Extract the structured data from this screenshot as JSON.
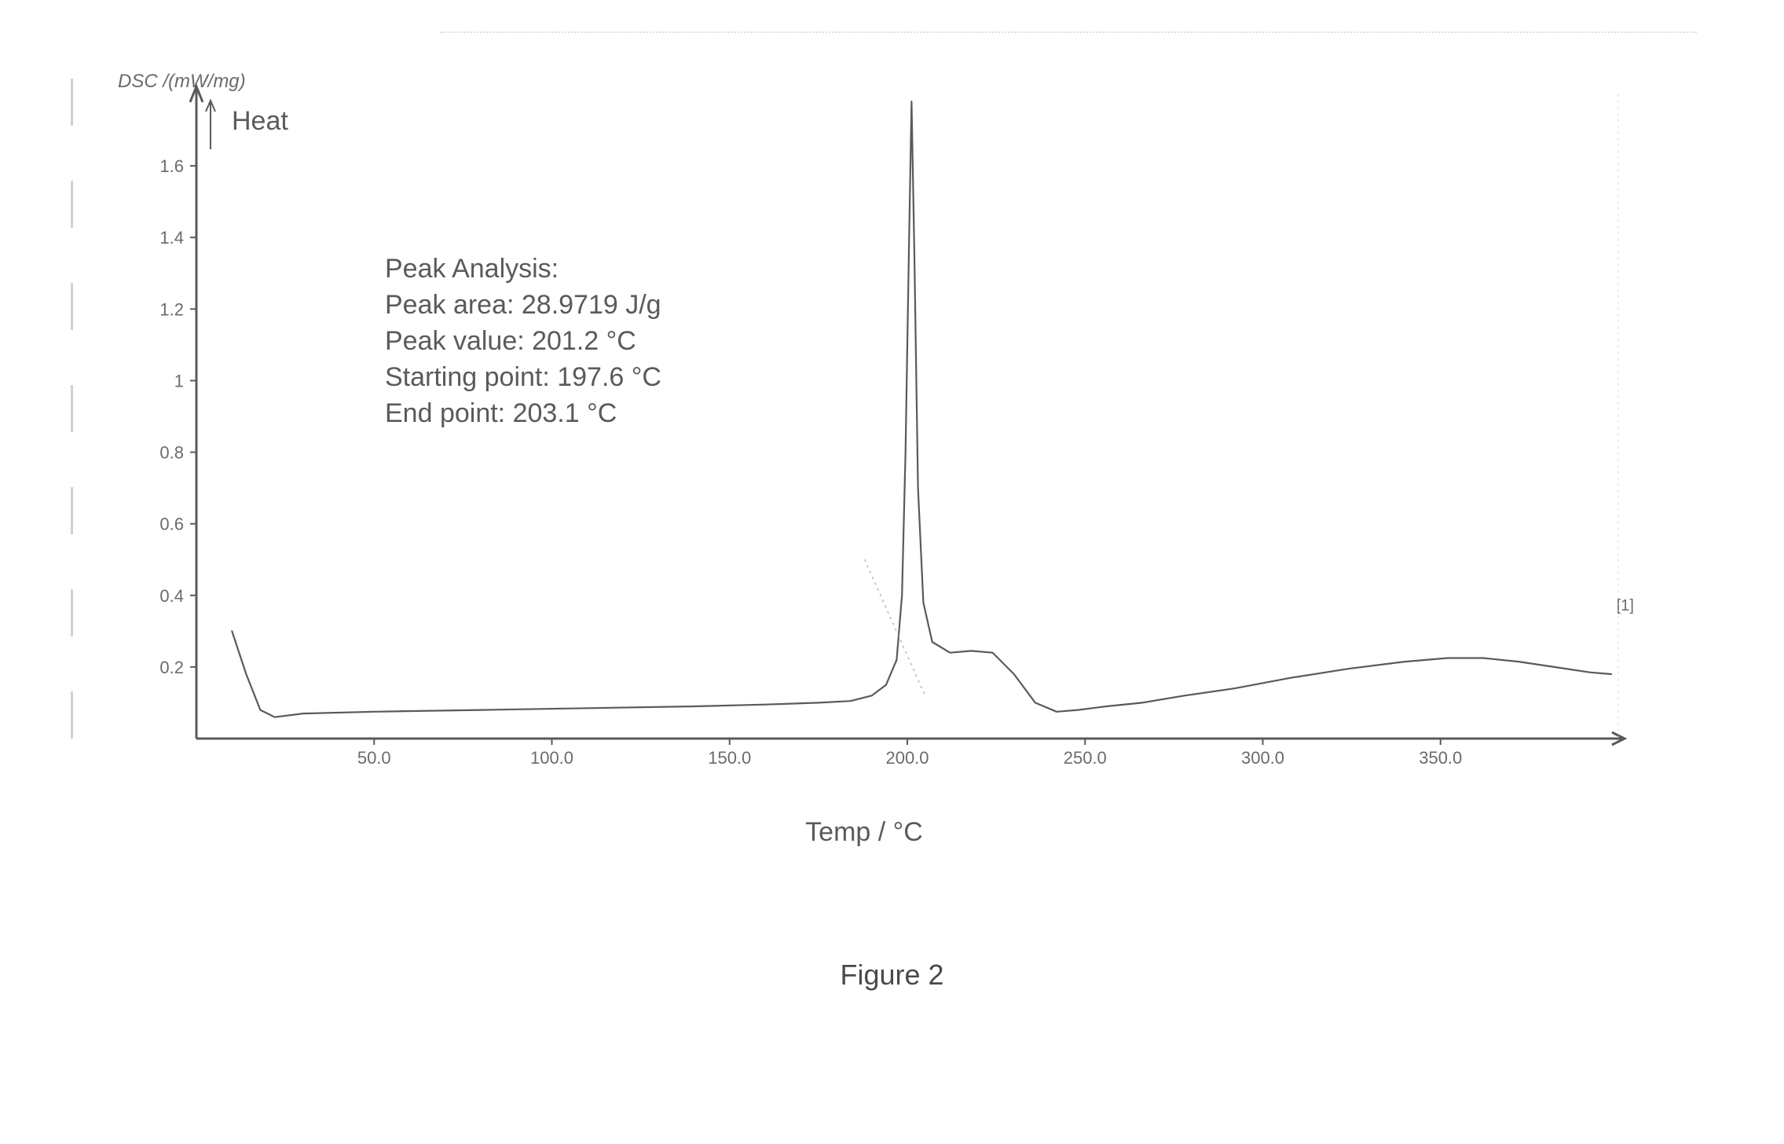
{
  "figure": {
    "caption": "Figure 2"
  },
  "chart": {
    "type": "line",
    "yaxis_title": "DSC /(mW/mg)",
    "heat_label": "Heat",
    "xaxis_title": "Temp / °C",
    "xlim": [
      0,
      400
    ],
    "ylim": [
      0,
      1.8
    ],
    "x_ticks": [
      50.0,
      100.0,
      150.0,
      200.0,
      250.0,
      300.0,
      350.0
    ],
    "x_tick_labels": [
      "50.0",
      "100.0",
      "150.0",
      "200.0",
      "250.0",
      "300.0",
      "350.0"
    ],
    "y_ticks": [
      0.2,
      0.4,
      0.6,
      0.8,
      1.0,
      1.2,
      1.4,
      1.6
    ],
    "y_tick_labels": [
      "0.2",
      "0.4",
      "0.6",
      "0.8",
      "1",
      "1.2",
      "1.4",
      "1.6"
    ],
    "tick_fontsize": 22,
    "axis_color": "#5a5a5a",
    "line_color": "#5a5a5a",
    "line_width": 2.2,
    "background_color": "#ffffff",
    "grid_on": false,
    "scan_marker": "[1]",
    "peak_analysis": {
      "title": "Peak Analysis:",
      "rows": [
        "Peak area: 28.9719 J/g",
        "Peak value: 201.2 °C",
        "Starting point: 197.6 °C",
        "End point: 203.1 °C"
      ]
    },
    "series": {
      "name": "DSC",
      "points": [
        [
          10,
          0.3
        ],
        [
          14,
          0.18
        ],
        [
          18,
          0.08
        ],
        [
          22,
          0.06
        ],
        [
          30,
          0.07
        ],
        [
          50,
          0.075
        ],
        [
          80,
          0.08
        ],
        [
          110,
          0.085
        ],
        [
          140,
          0.09
        ],
        [
          160,
          0.095
        ],
        [
          175,
          0.1
        ],
        [
          184,
          0.105
        ],
        [
          190,
          0.12
        ],
        [
          194,
          0.15
        ],
        [
          197,
          0.22
        ],
        [
          198.5,
          0.4
        ],
        [
          199.5,
          0.8
        ],
        [
          200.5,
          1.4
        ],
        [
          201.2,
          1.78
        ],
        [
          202.0,
          1.35
        ],
        [
          203.0,
          0.7
        ],
        [
          204.5,
          0.38
        ],
        [
          207,
          0.27
        ],
        [
          212,
          0.24
        ],
        [
          218,
          0.245
        ],
        [
          224,
          0.24
        ],
        [
          230,
          0.18
        ],
        [
          236,
          0.1
        ],
        [
          242,
          0.075
        ],
        [
          248,
          0.08
        ],
        [
          256,
          0.09
        ],
        [
          266,
          0.1
        ],
        [
          278,
          0.12
        ],
        [
          292,
          0.14
        ],
        [
          308,
          0.17
        ],
        [
          324,
          0.195
        ],
        [
          340,
          0.215
        ],
        [
          352,
          0.225
        ],
        [
          362,
          0.225
        ],
        [
          372,
          0.215
        ],
        [
          382,
          0.2
        ],
        [
          392,
          0.185
        ],
        [
          398,
          0.18
        ]
      ]
    }
  }
}
